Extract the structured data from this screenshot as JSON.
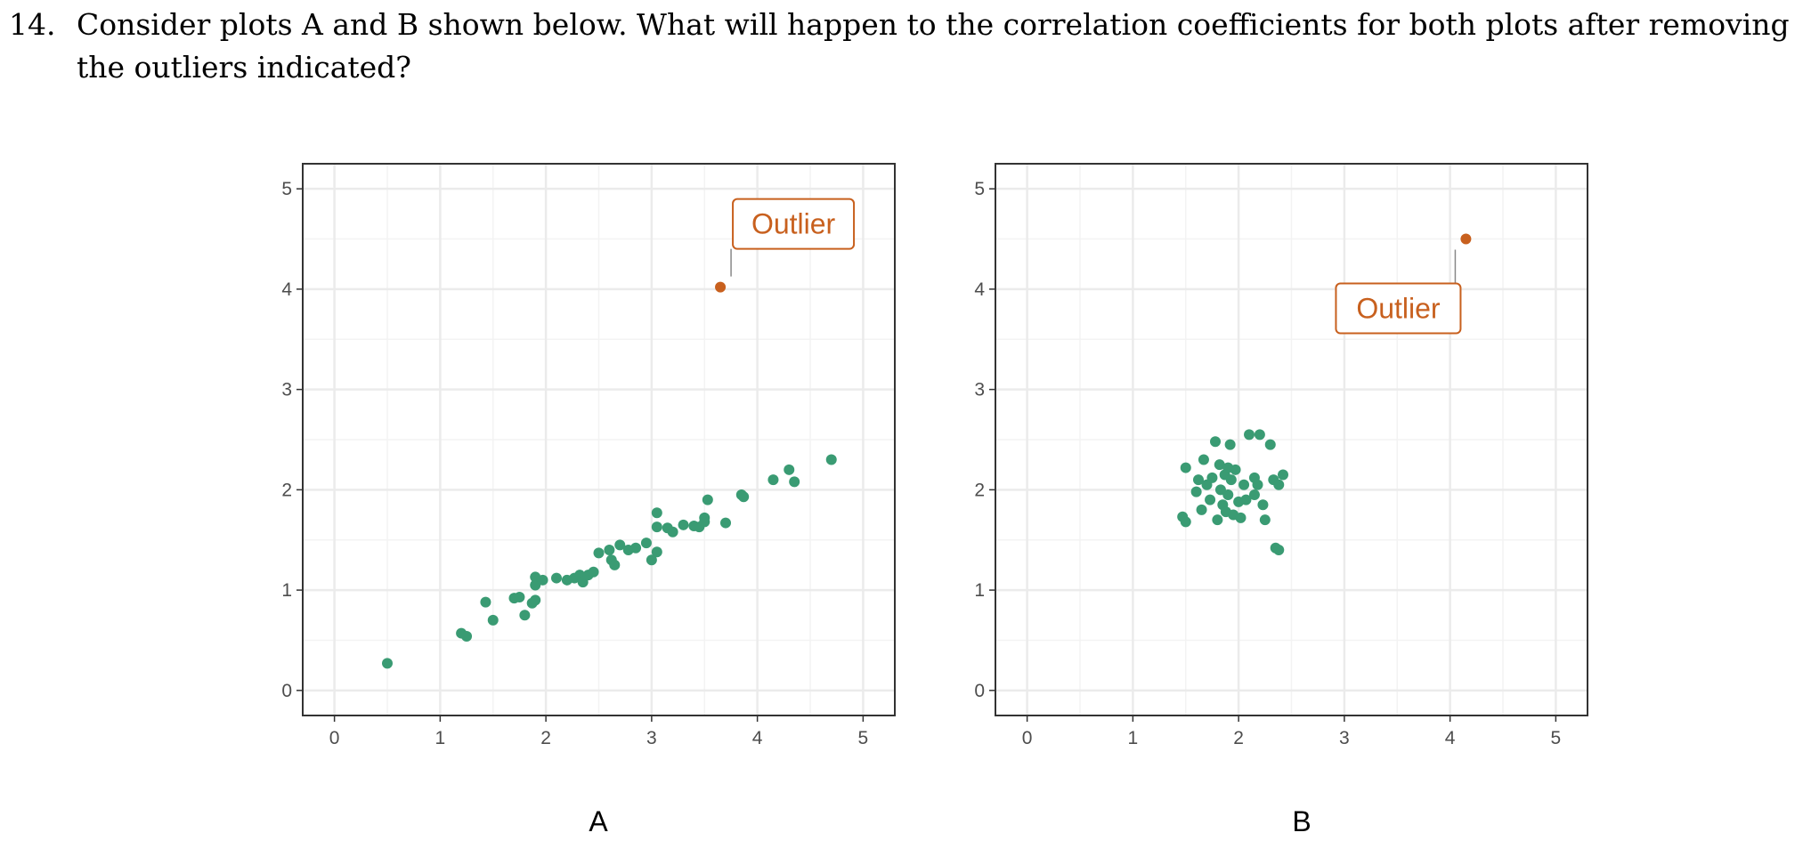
{
  "question": {
    "number": "14.",
    "text": "Consider plots A and B shown below. What will happen to the correlation coefficients for both plots after removing the outliers indicated?"
  },
  "colors": {
    "points": "#3a9b73",
    "outlier": "#c8601e",
    "grid": "#ebebeb",
    "axis": "#333333"
  },
  "chart_data": [
    {
      "type": "scatter",
      "label": "A",
      "xlim": [
        -0.3,
        5.3
      ],
      "ylim": [
        -0.25,
        5.25
      ],
      "x_ticks": [
        0,
        1,
        2,
        3,
        4,
        5
      ],
      "y_ticks": [
        0,
        1,
        2,
        3,
        4,
        5
      ],
      "grid": true,
      "points": [
        [
          0.5,
          0.27
        ],
        [
          1.2,
          0.57
        ],
        [
          1.25,
          0.54
        ],
        [
          1.43,
          0.88
        ],
        [
          1.5,
          0.7
        ],
        [
          1.7,
          0.92
        ],
        [
          1.75,
          0.93
        ],
        [
          1.8,
          0.75
        ],
        [
          1.87,
          0.87
        ],
        [
          1.9,
          0.9
        ],
        [
          1.9,
          1.05
        ],
        [
          1.9,
          1.13
        ],
        [
          1.97,
          1.1
        ],
        [
          2.1,
          1.12
        ],
        [
          2.2,
          1.1
        ],
        [
          2.27,
          1.12
        ],
        [
          2.32,
          1.15
        ],
        [
          2.35,
          1.08
        ],
        [
          2.4,
          1.15
        ],
        [
          2.45,
          1.18
        ],
        [
          2.5,
          1.37
        ],
        [
          2.6,
          1.4
        ],
        [
          2.62,
          1.3
        ],
        [
          2.65,
          1.25
        ],
        [
          2.7,
          1.45
        ],
        [
          2.78,
          1.4
        ],
        [
          2.85,
          1.42
        ],
        [
          2.95,
          1.47
        ],
        [
          3.0,
          1.3
        ],
        [
          3.05,
          1.38
        ],
        [
          3.05,
          1.63
        ],
        [
          3.05,
          1.77
        ],
        [
          3.15,
          1.62
        ],
        [
          3.2,
          1.58
        ],
        [
          3.3,
          1.65
        ],
        [
          3.4,
          1.64
        ],
        [
          3.45,
          1.63
        ],
        [
          3.5,
          1.68
        ],
        [
          3.5,
          1.72
        ],
        [
          3.53,
          1.9
        ],
        [
          3.7,
          1.67
        ],
        [
          3.85,
          1.95
        ],
        [
          3.87,
          1.93
        ],
        [
          4.15,
          2.1
        ],
        [
          4.3,
          2.2
        ],
        [
          4.35,
          2.08
        ],
        [
          4.7,
          2.3
        ]
      ],
      "outlier": {
        "x": 3.65,
        "y": 4.02,
        "label": "Outlier"
      }
    },
    {
      "type": "scatter",
      "label": "B",
      "xlim": [
        -0.3,
        5.3
      ],
      "ylim": [
        -0.25,
        5.25
      ],
      "x_ticks": [
        0,
        1,
        2,
        3,
        4,
        5
      ],
      "y_ticks": [
        0,
        1,
        2,
        3,
        4,
        5
      ],
      "grid": true,
      "points": [
        [
          1.47,
          1.73
        ],
        [
          1.5,
          1.68
        ],
        [
          1.5,
          2.22
        ],
        [
          1.6,
          1.98
        ],
        [
          1.62,
          2.1
        ],
        [
          1.65,
          1.8
        ],
        [
          1.67,
          2.3
        ],
        [
          1.7,
          2.05
        ],
        [
          1.73,
          1.9
        ],
        [
          1.75,
          2.12
        ],
        [
          1.78,
          2.48
        ],
        [
          1.8,
          1.7
        ],
        [
          1.82,
          2.25
        ],
        [
          1.83,
          2.0
        ],
        [
          1.85,
          1.85
        ],
        [
          1.87,
          2.15
        ],
        [
          1.88,
          1.78
        ],
        [
          1.9,
          2.22
        ],
        [
          1.9,
          1.95
        ],
        [
          1.92,
          2.45
        ],
        [
          1.93,
          2.1
        ],
        [
          1.95,
          1.75
        ],
        [
          1.97,
          2.2
        ],
        [
          2.0,
          1.88
        ],
        [
          2.02,
          1.72
        ],
        [
          2.05,
          2.05
        ],
        [
          2.07,
          1.9
        ],
        [
          2.1,
          2.55
        ],
        [
          2.15,
          1.95
        ],
        [
          2.15,
          2.12
        ],
        [
          2.18,
          2.05
        ],
        [
          2.2,
          2.55
        ],
        [
          2.23,
          1.85
        ],
        [
          2.25,
          1.7
        ],
        [
          2.3,
          2.45
        ],
        [
          2.33,
          2.1
        ],
        [
          2.35,
          1.42
        ],
        [
          2.38,
          1.4
        ],
        [
          2.38,
          2.05
        ],
        [
          2.42,
          2.15
        ]
      ],
      "outlier": {
        "x": 4.15,
        "y": 4.5,
        "label": "Outlier"
      }
    }
  ]
}
